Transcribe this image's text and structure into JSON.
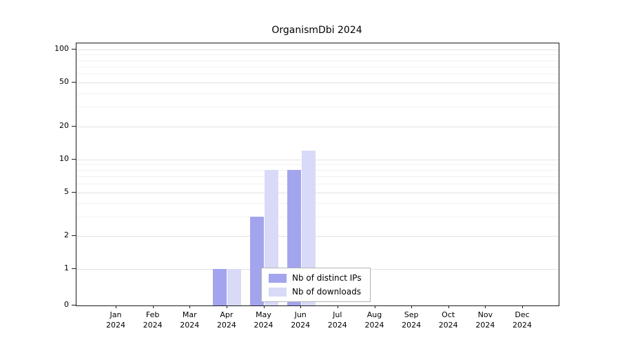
{
  "chart_data": {
    "type": "bar",
    "title": "OrganismDbi 2024",
    "x": {
      "months": [
        "Jan",
        "Feb",
        "Mar",
        "Apr",
        "May",
        "Jun",
        "Jul",
        "Aug",
        "Sep",
        "Oct",
        "Nov",
        "Dec"
      ],
      "year": "2024"
    },
    "categories": [
      "Jan 2024",
      "Feb 2024",
      "Mar 2024",
      "Apr 2024",
      "May 2024",
      "Jun 2024",
      "Jul 2024",
      "Aug 2024",
      "Sep 2024",
      "Oct 2024",
      "Nov 2024",
      "Dec 2024"
    ],
    "series": [
      {
        "name": "Nb of distinct IPs",
        "color": "#a2a4ee",
        "values": [
          0,
          0,
          0,
          1,
          3,
          8,
          0,
          0,
          0,
          0,
          0,
          0
        ]
      },
      {
        "name": "Nb of downloads",
        "color": "#d8daf8",
        "values": [
          0,
          0,
          0,
          1,
          8,
          12,
          0,
          0,
          0,
          0,
          0,
          0
        ]
      }
    ],
    "y_axis": {
      "ticks": [
        0,
        1,
        2,
        5,
        10,
        20,
        50,
        100
      ],
      "minor_gridlines": [
        3,
        4,
        6,
        7,
        8,
        9,
        30,
        40,
        60,
        70,
        80,
        90
      ],
      "scale": "log-like (0 pinned at baseline)",
      "ylim": [
        0,
        100
      ]
    },
    "legend": {
      "position": "inside-bottom-center",
      "entries": [
        "Nb of distinct IPs",
        "Nb of downloads"
      ]
    },
    "grid": true
  },
  "colors": {
    "grid_major": "#e2e2e2",
    "grid_minor": "#f1f1f1",
    "axis": "#1a1a1a",
    "background": "#ffffff",
    "legend_border": "#b3b3b3"
  }
}
